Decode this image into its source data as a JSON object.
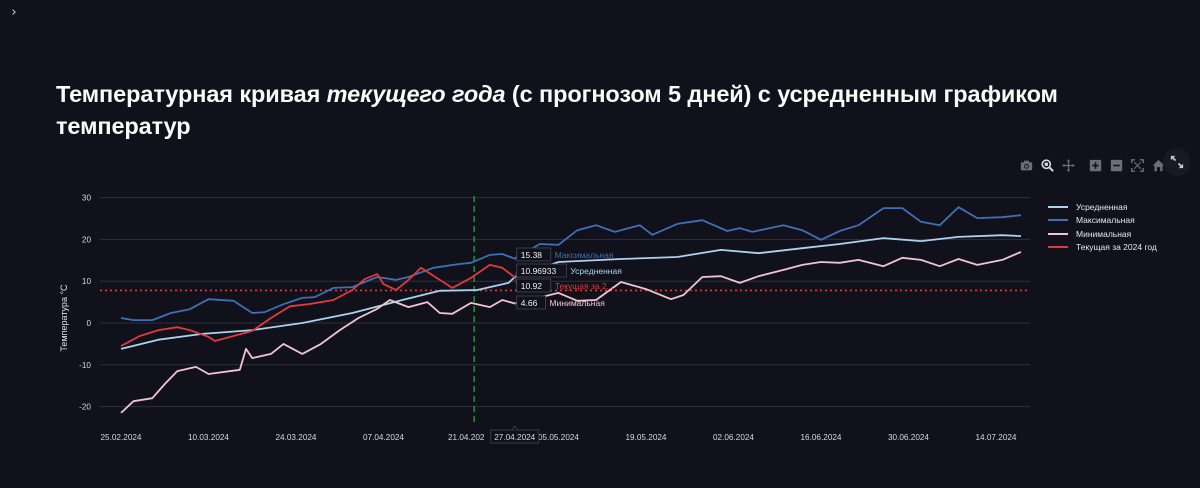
{
  "app": {
    "sidebar_toggle_icon": "chevron-right-icon",
    "sidebar_toggle_glyph": "›"
  },
  "header": {
    "title_part1": "Температурная кривая ",
    "title_emphasis": "текущего года",
    "title_part2": " (с прогнозом 5 дней) с усредненным графиком температур"
  },
  "modebar": {
    "buttons": [
      {
        "name": "camera-icon",
        "label": "Download plot as png"
      },
      {
        "name": "zoom-icon",
        "label": "Zoom"
      },
      {
        "name": "pan-icon",
        "label": "Pan"
      },
      {
        "name": "zoom-in-icon",
        "label": "Zoom in"
      },
      {
        "name": "zoom-out-icon",
        "label": "Zoom out"
      },
      {
        "name": "autoscale-icon",
        "label": "Autoscale"
      },
      {
        "name": "home-icon",
        "label": "Reset axes"
      }
    ],
    "expand_icon": "fullscreen-expand-icon"
  },
  "colors": {
    "background": "#10111a",
    "grid": "#2e303c",
    "avg": "#a9d3f0",
    "max": "#3f6fb5",
    "min": "#f2c4cf",
    "current": "#e0393e",
    "reference": "#e0393e",
    "today_marker": "#2ea043"
  },
  "chart_data": {
    "type": "line",
    "title": "Температурная кривая текущего года (с прогнозом 5 дней) с усредненным графиком температур",
    "xlabel": "",
    "ylabel": "Температура °C",
    "ylim": [
      -22,
      32
    ],
    "yticks": [
      -20,
      -10,
      0,
      10,
      20,
      30
    ],
    "grid": true,
    "legend_position": "right",
    "x_tick_labels": [
      "25.02.2024",
      "10.03.2024",
      "24.03.2024",
      "07.04.2024",
      "21.04.2024",
      "05.05.2024",
      "19.05.2024",
      "02.06.2024",
      "16.06.2024",
      "30.06.2024",
      "14.07.2024"
    ],
    "x_tick_days": [
      0,
      14,
      28,
      42,
      56,
      70,
      84,
      98,
      112,
      126,
      140
    ],
    "x_start_date": "25.02.2024",
    "x_range_days": [
      -3,
      145
    ],
    "reference_line": {
      "value": 7.8,
      "style": "dotted",
      "color": "#e0393e"
    },
    "vertical_marker": {
      "day": 56.5,
      "style": "dashed",
      "color": "#2ea043"
    },
    "hover": {
      "x_label": "27.04.2024",
      "day": 63,
      "entries": [
        {
          "value": "15.38",
          "series": "Максимальная",
          "color": "#3f6fb5"
        },
        {
          "value": "10.96933",
          "series": "Усредненная",
          "color": "#a9d3f0"
        },
        {
          "value": "10.92",
          "series": "Текущая за 2...",
          "color": "#e0393e"
        },
        {
          "value": "4.66",
          "series": "Минимальная",
          "color": "#f2c4cf"
        }
      ]
    },
    "series": [
      {
        "name": "Усредненная",
        "color": "#a9d3f0",
        "x": [
          0,
          6,
          13,
          21,
          29,
          37,
          45,
          51,
          57,
          62,
          63,
          70,
          80,
          89,
          96,
          102,
          109,
          115,
          122,
          128,
          134,
          141,
          144
        ],
        "values": [
          -6.2,
          -4.0,
          -2.6,
          -1.7,
          0.0,
          2.4,
          5.5,
          7.7,
          7.9,
          9.6,
          10.97,
          14.6,
          15.3,
          15.8,
          17.5,
          16.7,
          17.9,
          18.9,
          20.3,
          19.6,
          20.6,
          21.0,
          20.8
        ]
      },
      {
        "name": "Максимальная",
        "color": "#3f6fb5",
        "x": [
          0,
          2,
          5,
          8,
          11,
          14,
          18,
          21,
          23,
          26,
          29,
          31,
          34,
          37,
          41,
          44,
          46,
          50,
          54,
          56,
          59,
          61,
          63,
          67,
          70,
          73,
          76,
          79,
          83,
          85,
          89,
          93,
          97,
          99,
          101,
          106,
          109,
          112,
          115,
          118,
          122,
          125,
          128,
          131,
          134,
          137,
          141,
          144
        ],
        "values": [
          1.2,
          0.7,
          0.7,
          2.4,
          3.3,
          5.7,
          5.3,
          2.4,
          2.6,
          4.5,
          6.0,
          6.2,
          8.4,
          8.6,
          11.0,
          10.3,
          11.0,
          13.2,
          14.1,
          14.4,
          16.3,
          16.5,
          15.38,
          18.9,
          18.7,
          22.2,
          23.4,
          21.8,
          23.4,
          21.1,
          23.7,
          24.6,
          22.0,
          22.7,
          21.8,
          23.4,
          22.2,
          19.9,
          22.0,
          23.4,
          27.5,
          27.5,
          24.2,
          23.4,
          27.7,
          25.1,
          25.3,
          25.8
        ]
      },
      {
        "name": "Минимальная",
        "color": "#f2c4cf",
        "x": [
          0,
          2,
          5,
          7,
          9,
          12,
          14,
          19,
          20,
          21,
          24,
          26,
          29,
          32,
          35,
          38,
          41,
          43,
          46,
          49,
          51,
          53,
          56,
          59,
          61,
          63,
          70,
          73,
          76,
          80,
          84,
          88,
          90,
          93,
          96,
          99,
          102,
          106,
          109,
          112,
          115,
          118,
          122,
          125,
          128,
          131,
          134,
          137,
          141,
          144
        ],
        "values": [
          -21.5,
          -18.7,
          -18.0,
          -14.6,
          -11.5,
          -10.5,
          -12.2,
          -11.2,
          -6.2,
          -8.4,
          -7.4,
          -5.0,
          -7.4,
          -5.0,
          -1.7,
          1.2,
          3.4,
          5.5,
          3.8,
          5.0,
          2.4,
          2.2,
          4.8,
          3.8,
          5.5,
          4.66,
          7.2,
          5.3,
          5.5,
          9.8,
          8.1,
          5.7,
          6.7,
          11.0,
          11.2,
          9.6,
          11.2,
          12.7,
          13.9,
          14.6,
          14.4,
          15.1,
          13.6,
          15.6,
          15.1,
          13.6,
          15.3,
          13.9,
          15.1,
          17.0
        ]
      },
      {
        "name": "Текущая за 2024 год",
        "color": "#e0393e",
        "x": [
          0,
          3,
          6,
          9,
          11,
          14,
          15,
          18,
          21,
          24,
          27,
          30,
          34,
          37,
          39,
          41,
          42,
          44,
          46,
          48,
          51,
          53,
          56,
          59,
          61,
          63
        ],
        "values": [
          -5.5,
          -3.1,
          -1.7,
          -1.0,
          -1.7,
          -3.3,
          -4.3,
          -3.1,
          -1.9,
          1.2,
          4.0,
          4.5,
          5.5,
          7.9,
          10.5,
          11.7,
          9.3,
          7.9,
          10.3,
          13.2,
          10.3,
          8.4,
          10.8,
          13.9,
          13.2,
          10.92
        ]
      }
    ]
  }
}
